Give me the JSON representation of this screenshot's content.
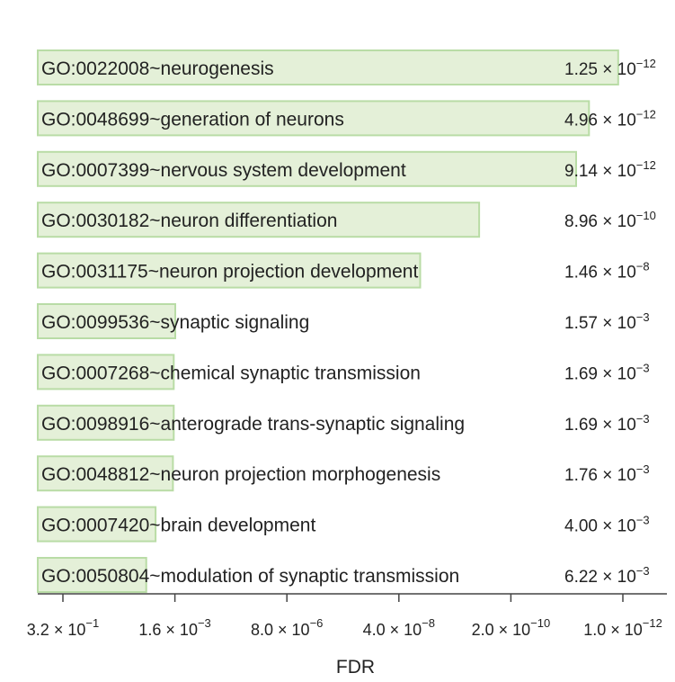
{
  "chart_data": {
    "type": "bar",
    "orientation": "horizontal",
    "x_scale": "log",
    "xlabel": "FDR",
    "xlim": [
      0.32,
      1e-12
    ],
    "grid": false,
    "categories": [
      "GO:0022008~neurogenesis",
      "GO:0048699~generation of neurons",
      "GO:0007399~nervous system development",
      "GO:0030182~neuron differentiation",
      "GO:0031175~neuron projection development",
      "GO:0099536~synaptic signaling",
      "GO:0007268~chemical synaptic transmission",
      "GO:0098916~anterograde trans-synaptic signaling",
      "GO:0048812~neuron projection morphogenesis",
      "GO:0007420~brain development",
      "GO:0050804~modulation of synaptic transmission"
    ],
    "values": [
      1.25e-12,
      4.96e-12,
      9.14e-12,
      8.96e-10,
      1.46e-08,
      0.00157,
      0.00169,
      0.00169,
      0.00176,
      0.004,
      0.00622
    ],
    "value_labels": [
      {
        "mantissa": "1.25",
        "exp": "−12"
      },
      {
        "mantissa": "4.96",
        "exp": "−12"
      },
      {
        "mantissa": "9.14",
        "exp": "−12"
      },
      {
        "mantissa": "8.96",
        "exp": "−10"
      },
      {
        "mantissa": "1.46",
        "exp": "−8"
      },
      {
        "mantissa": "1.57",
        "exp": "−3"
      },
      {
        "mantissa": "1.69",
        "exp": "−3"
      },
      {
        "mantissa": "1.69",
        "exp": "−3"
      },
      {
        "mantissa": "1.76",
        "exp": "−3"
      },
      {
        "mantissa": "4.00",
        "exp": "−3"
      },
      {
        "mantissa": "6.22",
        "exp": "−3"
      }
    ],
    "ticks": [
      {
        "value": 0.32,
        "mantissa": "3.2",
        "exp": "−1"
      },
      {
        "value": 0.0016,
        "mantissa": "1.6",
        "exp": "−3"
      },
      {
        "value": 8e-06,
        "mantissa": "8.0",
        "exp": "−6"
      },
      {
        "value": 4e-08,
        "mantissa": "4.0",
        "exp": "−8"
      },
      {
        "value": 2e-10,
        "mantissa": "2.0",
        "exp": "−10"
      },
      {
        "value": 1e-12,
        "mantissa": "1.0",
        "exp": "−12"
      }
    ],
    "times_sign": "×",
    "base": "10",
    "colors": {
      "bar_fill": "#e4f0d8",
      "bar_stroke": "#b9dca6",
      "axis": "#444444"
    }
  }
}
